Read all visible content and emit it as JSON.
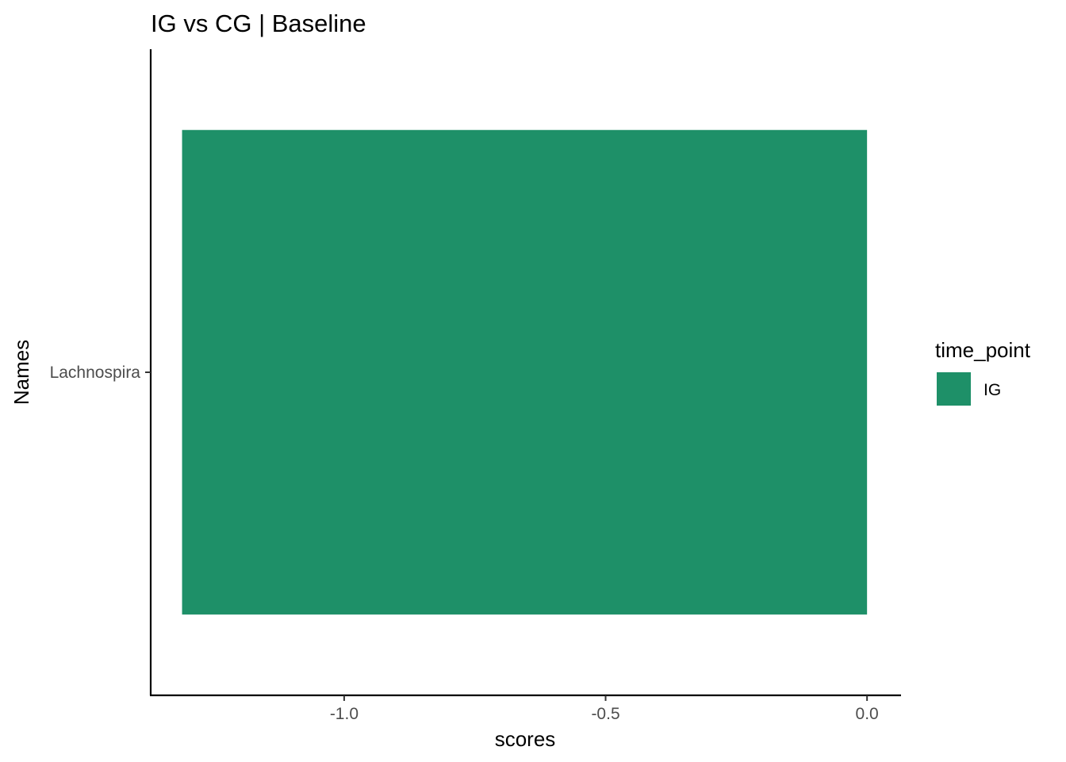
{
  "chart_data": {
    "type": "bar",
    "orientation": "horizontal",
    "title": "IG vs CG | Baseline",
    "xlabel": "scores",
    "ylabel": "Names",
    "categories": [
      "Lachnospira"
    ],
    "series": [
      {
        "name": "IG",
        "values": [
          -1.31
        ]
      }
    ],
    "xlim": [
      -1.37,
      0.065
    ],
    "xticks": [
      -1.0,
      -0.5,
      0.0
    ],
    "xtick_labels": [
      "-1.0",
      "-0.5",
      "0.0"
    ],
    "grid": false,
    "legend": {
      "title": "time_point",
      "position": "right",
      "entries": [
        "IG"
      ]
    },
    "colors": {
      "IG": "#1e9068"
    }
  }
}
